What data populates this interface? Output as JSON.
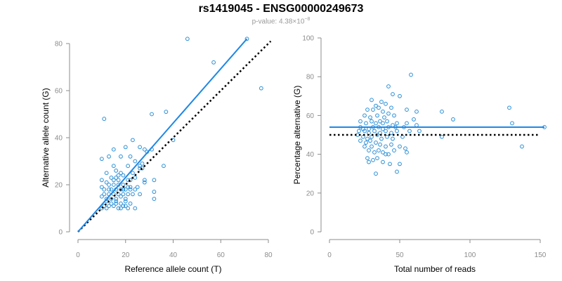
{
  "header": {
    "title": "rs1419045 - ENSG00000249673",
    "pvalue_prefix": "p-value: 4.38×10",
    "pvalue_exp": "−8"
  },
  "colors": {
    "points": "#2b8fd6",
    "fit": "#1e88e5",
    "reference": "#000000",
    "axis": "#8c8c8c"
  },
  "chart_data": [
    {
      "type": "scatter",
      "xlabel": "Reference allele count (T)",
      "ylabel": "Alternative allele count (G)",
      "xlim": [
        0,
        80
      ],
      "ylim": [
        0,
        80
      ],
      "xticks": [
        0,
        20,
        40,
        60,
        80
      ],
      "yticks": [
        0,
        20,
        40,
        60,
        80
      ],
      "fit_line": {
        "x": [
          0,
          71
        ],
        "y": [
          0,
          82
        ]
      },
      "reference_line": {
        "x": [
          0,
          81
        ],
        "y": [
          0,
          81
        ]
      },
      "points": [
        [
          46,
          82
        ],
        [
          71,
          82
        ],
        [
          57,
          72
        ],
        [
          77,
          61
        ],
        [
          31,
          50
        ],
        [
          37,
          51
        ],
        [
          11,
          48
        ],
        [
          40,
          39
        ],
        [
          23,
          39
        ],
        [
          15,
          35
        ],
        [
          20,
          36
        ],
        [
          26,
          36
        ],
        [
          28,
          35
        ],
        [
          29,
          34
        ],
        [
          31,
          35
        ],
        [
          13,
          32
        ],
        [
          18,
          32
        ],
        [
          22,
          32
        ],
        [
          24,
          30
        ],
        [
          27,
          29
        ],
        [
          15,
          28
        ],
        [
          21,
          28
        ],
        [
          26,
          27
        ],
        [
          27,
          27
        ],
        [
          10,
          31
        ],
        [
          36,
          28
        ],
        [
          12,
          25
        ],
        [
          16,
          26
        ],
        [
          18,
          25
        ],
        [
          23,
          25
        ],
        [
          19,
          24
        ],
        [
          21,
          22
        ],
        [
          24,
          23
        ],
        [
          28,
          22
        ],
        [
          32,
          22
        ],
        [
          14,
          23
        ],
        [
          16,
          23
        ],
        [
          17,
          22
        ],
        [
          10,
          22
        ],
        [
          12,
          21
        ],
        [
          13,
          20
        ],
        [
          15,
          20
        ],
        [
          17,
          20
        ],
        [
          19,
          20
        ],
        [
          21,
          19
        ],
        [
          22,
          19
        ],
        [
          25,
          19
        ],
        [
          28,
          21
        ],
        [
          10,
          19
        ],
        [
          11,
          18
        ],
        [
          14,
          18
        ],
        [
          16,
          18
        ],
        [
          18,
          18
        ],
        [
          20,
          18
        ],
        [
          22,
          18
        ],
        [
          24,
          18
        ],
        [
          11,
          16
        ],
        [
          13,
          16
        ],
        [
          15,
          16
        ],
        [
          17,
          16
        ],
        [
          19,
          16
        ],
        [
          21,
          16
        ],
        [
          23,
          16
        ],
        [
          26,
          16
        ],
        [
          10,
          15
        ],
        [
          12,
          14
        ],
        [
          14,
          14
        ],
        [
          16,
          14
        ],
        [
          18,
          15
        ],
        [
          20,
          14
        ],
        [
          32,
          17
        ],
        [
          12,
          13
        ],
        [
          14,
          12
        ],
        [
          16,
          12
        ],
        [
          18,
          12
        ],
        [
          20,
          13
        ],
        [
          22,
          12
        ],
        [
          32,
          14
        ],
        [
          11,
          11
        ],
        [
          13,
          11
        ],
        [
          15,
          11
        ],
        [
          17,
          10
        ],
        [
          19,
          11
        ],
        [
          21,
          10
        ],
        [
          24,
          10
        ],
        [
          10,
          10
        ],
        [
          12,
          10
        ],
        [
          16,
          13
        ],
        [
          18,
          10
        ],
        [
          20,
          11
        ],
        [
          13,
          18
        ],
        [
          15,
          22
        ],
        [
          17,
          24
        ],
        [
          19,
          18
        ],
        [
          22,
          22
        ],
        [
          26,
          28
        ]
      ]
    },
    {
      "type": "scatter",
      "xlabel": "Total number of reads",
      "ylabel": "Percentage alternative (G)",
      "xlim": [
        0,
        150
      ],
      "ylim": [
        0,
        100
      ],
      "xticks": [
        0,
        50,
        100,
        150
      ],
      "yticks": [
        0,
        20,
        40,
        60,
        80,
        100
      ],
      "fit_line": {
        "x": [
          0,
          153
        ],
        "y": [
          54,
          54
        ]
      },
      "reference_line": {
        "x": [
          0,
          150
        ],
        "y": [
          50,
          50
        ]
      },
      "points": [
        [
          58,
          81
        ],
        [
          42,
          75
        ],
        [
          45,
          71
        ],
        [
          50,
          70
        ],
        [
          30,
          68
        ],
        [
          37,
          67
        ],
        [
          40,
          66
        ],
        [
          33,
          65
        ],
        [
          35,
          64
        ],
        [
          44,
          64
        ],
        [
          128,
          64
        ],
        [
          27,
          63
        ],
        [
          31,
          63
        ],
        [
          38,
          62
        ],
        [
          55,
          63
        ],
        [
          62,
          62
        ],
        [
          80,
          62
        ],
        [
          25,
          60
        ],
        [
          29,
          59
        ],
        [
          34,
          60
        ],
        [
          39,
          59
        ],
        [
          42,
          61
        ],
        [
          46,
          60
        ],
        [
          60,
          58
        ],
        [
          88,
          58
        ],
        [
          22,
          57
        ],
        [
          26,
          56
        ],
        [
          30,
          57
        ],
        [
          33,
          56
        ],
        [
          36,
          57
        ],
        [
          38,
          56
        ],
        [
          41,
          57
        ],
        [
          45,
          55
        ],
        [
          48,
          56
        ],
        [
          55,
          56
        ],
        [
          130,
          56
        ],
        [
          22,
          54
        ],
        [
          24,
          53
        ],
        [
          28,
          53
        ],
        [
          31,
          54
        ],
        [
          35,
          54
        ],
        [
          38,
          53
        ],
        [
          42,
          54
        ],
        [
          47,
          54
        ],
        [
          53,
          54
        ],
        [
          62,
          55
        ],
        [
          21,
          52
        ],
        [
          25,
          52
        ],
        [
          28,
          51
        ],
        [
          32,
          52
        ],
        [
          36,
          51
        ],
        [
          40,
          52
        ],
        [
          44,
          51
        ],
        [
          48,
          52
        ],
        [
          57,
          52
        ],
        [
          64,
          52
        ],
        [
          153,
          54
        ],
        [
          20,
          50
        ],
        [
          24,
          49
        ],
        [
          27,
          48
        ],
        [
          30,
          49
        ],
        [
          34,
          50
        ],
        [
          37,
          48
        ],
        [
          41,
          49
        ],
        [
          45,
          48
        ],
        [
          52,
          49
        ],
        [
          80,
          49
        ],
        [
          22,
          47
        ],
        [
          26,
          46
        ],
        [
          29,
          47
        ],
        [
          33,
          46
        ],
        [
          36,
          45
        ],
        [
          40,
          44
        ],
        [
          44,
          45
        ],
        [
          50,
          44
        ],
        [
          54,
          43
        ],
        [
          137,
          44
        ],
        [
          25,
          44
        ],
        [
          28,
          42
        ],
        [
          32,
          41
        ],
        [
          35,
          42
        ],
        [
          38,
          41
        ],
        [
          42,
          40
        ],
        [
          55,
          41
        ],
        [
          27,
          38
        ],
        [
          31,
          37
        ],
        [
          34,
          38
        ],
        [
          38,
          36
        ],
        [
          28,
          36
        ],
        [
          43,
          35
        ],
        [
          50,
          35
        ],
        [
          48,
          31
        ],
        [
          33,
          30
        ],
        [
          40,
          40
        ],
        [
          46,
          42
        ],
        [
          30,
          44
        ]
      ]
    }
  ]
}
